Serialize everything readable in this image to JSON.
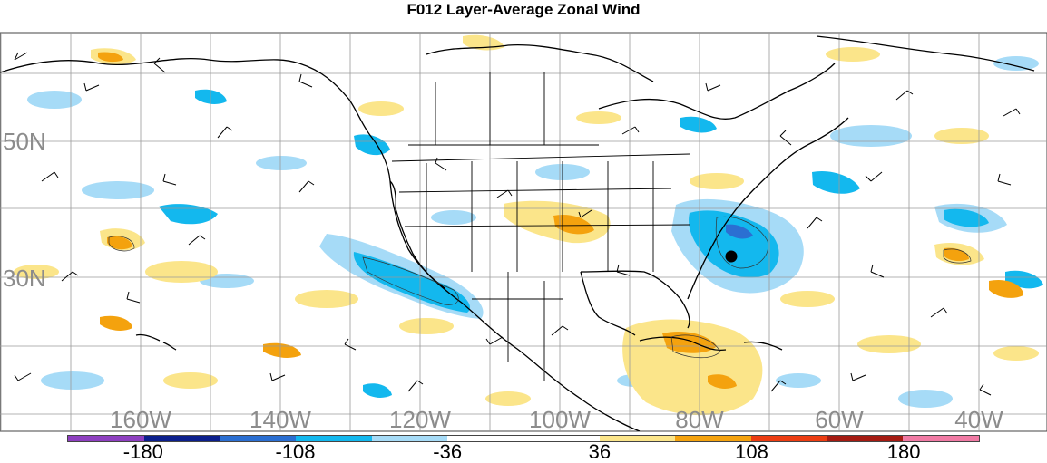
{
  "title": "F012 Layer-Average Zonal Wind",
  "lat_labels": [
    "50N",
    "30N"
  ],
  "lon_labels": [
    "160W",
    "140W",
    "120W",
    "100W",
    "80W",
    "60W",
    "40W"
  ],
  "colorbar": {
    "labels": [
      "-180",
      "-108",
      "-36",
      "36",
      "108",
      "180"
    ],
    "colors": [
      "#8e3fc0",
      "#0c1f8c",
      "#2b6fd2",
      "#13b8ee",
      "#a6dbf7",
      "#ffffff",
      "#ffffff",
      "#fbe58a",
      "#f4a20e",
      "#ec3d12",
      "#a51b12",
      "#f07aa4"
    ]
  },
  "marker": {
    "label": "",
    "color": "#000000"
  }
}
